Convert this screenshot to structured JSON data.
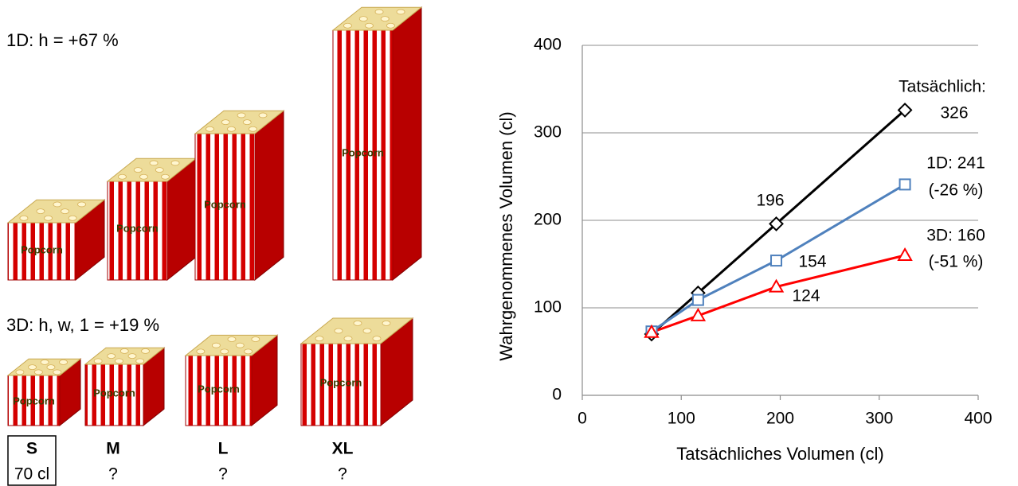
{
  "illustration": {
    "row1_label": "1D: h = +67 %",
    "row2_label": "3D: h, w, 1 = +19 %",
    "box_text": "Popcorn",
    "sizes": [
      {
        "name": "S",
        "volume": "70 cl"
      },
      {
        "name": "M",
        "volume": "?"
      },
      {
        "name": "L",
        "volume": "?"
      },
      {
        "name": "XL",
        "volume": "?"
      }
    ]
  },
  "chart_data": {
    "type": "line",
    "xlabel": "Tatsächliches Volumen (cl)",
    "ylabel": "Wahrgenommenes Volumen (cl)",
    "xlim": [
      0,
      400
    ],
    "ylim": [
      0,
      400
    ],
    "xticks": [
      0,
      100,
      200,
      300,
      400
    ],
    "yticks": [
      0,
      100,
      200,
      300,
      400
    ],
    "grid": true,
    "x": [
      70,
      117,
      196,
      326
    ],
    "series": [
      {
        "color": "#000000",
        "marker": "diamond",
        "values": [
          70,
          117,
          196,
          326
        ]
      },
      {
        "color": "#4f81bd",
        "marker": "square",
        "values": [
          73,
          109,
          154,
          241
        ],
        "value_labels": [
          null,
          null,
          "154",
          "1D: 241"
        ]
      },
      {
        "color": "#ff0000",
        "marker": "triangle",
        "values": [
          72,
          91,
          124,
          160
        ],
        "value_labels": [
          null,
          null,
          "124",
          "3D: 160"
        ]
      }
    ],
    "annotations": [
      "Tatsächlich:",
      "(-26 %)",
      "(-51 %)"
    ]
  }
}
